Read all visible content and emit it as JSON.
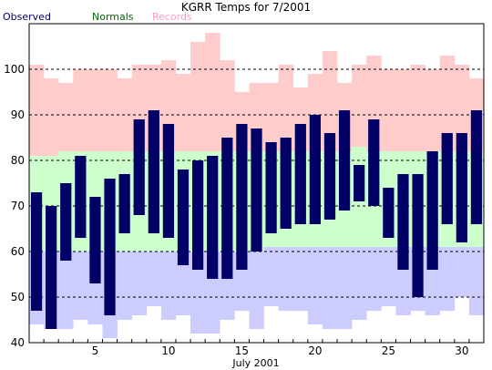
{
  "chart_data": {
    "type": "bar",
    "title": "KGRR Temps for 7/2001",
    "xlabel": "July 2001",
    "ylabel": "",
    "ylim": [
      40,
      110
    ],
    "xlim": [
      0.5,
      31.5
    ],
    "grid": true,
    "yticks": [
      40,
      50,
      60,
      70,
      80,
      90,
      100
    ],
    "xticks": [
      5,
      10,
      15,
      20,
      25,
      30
    ],
    "legend": [
      {
        "name": "Observed",
        "color": "#000066"
      },
      {
        "name": "Normals",
        "color": "#006600"
      },
      {
        "name": "Records",
        "color": "#ff99cc"
      }
    ],
    "colors": {
      "record_band": "#ffcccc",
      "normal_band": "#ccffcc",
      "below_normal_band": "#ccccff",
      "observed_bar": "#000066",
      "grid": "#000000"
    },
    "days": [
      1,
      2,
      3,
      4,
      5,
      6,
      7,
      8,
      9,
      10,
      11,
      12,
      13,
      14,
      15,
      16,
      17,
      18,
      19,
      20,
      21,
      22,
      23,
      24,
      25,
      26,
      27,
      28,
      29,
      30,
      31
    ],
    "series": [
      {
        "name": "Observed",
        "role": "observed",
        "high": [
          73,
          70,
          75,
          81,
          72,
          76,
          77,
          89,
          91,
          88,
          78,
          80,
          81,
          85,
          88,
          87,
          84,
          85,
          88,
          90,
          86,
          91,
          79,
          89,
          74,
          77,
          77,
          82,
          86,
          86,
          91
        ],
        "low": [
          47,
          43,
          58,
          63,
          53,
          46,
          64,
          68,
          64,
          63,
          57,
          56,
          54,
          54,
          56,
          60,
          64,
          65,
          66,
          66,
          67,
          69,
          71,
          70,
          63,
          56,
          50,
          56,
          66,
          62,
          66
        ]
      },
      {
        "name": "Normals",
        "role": "normal",
        "high": [
          81,
          81,
          82,
          82,
          82,
          82,
          82,
          82,
          82,
          82,
          82,
          82,
          82,
          82,
          82,
          82,
          82,
          82,
          82,
          82,
          82,
          82,
          83,
          82,
          82,
          82,
          82,
          82,
          82,
          82,
          82
        ],
        "low": [
          60,
          60,
          60,
          60,
          60,
          60,
          60,
          60,
          60,
          60,
          60,
          60,
          60,
          60,
          60,
          60,
          61,
          61,
          61,
          61,
          61,
          61,
          61,
          61,
          61,
          61,
          61,
          61,
          61,
          61,
          61
        ]
      },
      {
        "name": "Records",
        "role": "record",
        "high": [
          101,
          98,
          97,
          100,
          100,
          100,
          98,
          101,
          101,
          102,
          99,
          106,
          108,
          102,
          95,
          97,
          97,
          101,
          96,
          99,
          104,
          97,
          101,
          103,
          100,
          100,
          101,
          100,
          103,
          101,
          98
        ],
        "low": [
          44,
          43,
          43,
          45,
          44,
          41,
          45,
          46,
          48,
          45,
          46,
          42,
          42,
          45,
          47,
          43,
          48,
          47,
          47,
          44,
          43,
          43,
          45,
          47,
          48,
          46,
          47,
          46,
          47,
          50,
          46
        ]
      }
    ]
  }
}
